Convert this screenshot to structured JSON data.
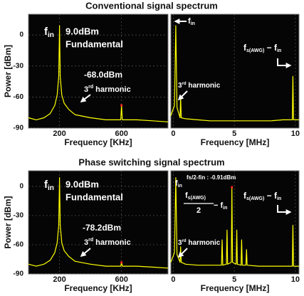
{
  "chart_data": [
    {
      "type": "line",
      "title": "Conventional signal spectrum",
      "x_label": "Frequency [KHz]",
      "y_label": "Power [dBm]",
      "xlim": [
        0,
        900
      ],
      "xticks": [
        200,
        600
      ],
      "ylim": [
        -90,
        20
      ],
      "yticks": [
        0,
        -30,
        -60,
        -90
      ],
      "grid": true,
      "color": "#ffff00",
      "x": [
        0,
        50,
        100,
        140,
        170,
        185,
        195,
        200,
        205,
        215,
        230,
        260,
        300,
        400,
        500,
        595,
        600,
        605,
        700,
        800,
        900
      ],
      "values": [
        -80,
        -82,
        -80,
        -76,
        -68,
        -58,
        -40,
        9,
        -40,
        -58,
        -66,
        -72,
        -77,
        -80,
        -82,
        -82,
        -68,
        -82,
        -82,
        -83,
        -84
      ],
      "annotations": {
        "fin": {
          "text": "f",
          "sub": "in"
        },
        "fundamental_power": "9.0dBm",
        "fundamental": "Fundamental",
        "harmonic_power": "-68.0dBm",
        "harmonic": {
          "text": "3",
          "sup": "rd",
          "tail": " harmonic"
        }
      }
    },
    {
      "type": "line",
      "x_label": "Frequency [MHz]",
      "xlim": [
        -0.2,
        10.3
      ],
      "xticks": [
        0,
        5,
        10
      ],
      "ylim": [
        -90,
        20
      ],
      "grid": true,
      "color": "#ffff00",
      "x": [
        -0.2,
        0.1,
        0.2,
        0.3,
        0.55,
        0.6,
        0.65,
        1,
        2,
        3,
        4,
        5,
        6,
        7,
        8,
        9,
        9.75,
        9.8,
        9.85,
        10.3
      ],
      "values": [
        -78,
        -68,
        9,
        -70,
        -80,
        -60,
        -80,
        -81,
        -82,
        -83,
        -83,
        -83,
        -83,
        -83,
        -83,
        -82,
        -82,
        -40,
        -82,
        -82
      ],
      "annotations": {
        "fin": {
          "text": "f",
          "sub": "in"
        },
        "image": {
          "text": "f",
          "sub": "s(AWG)",
          "mid": " − f",
          "sub2": "in"
        },
        "harmonic": {
          "text": "3",
          "sup": "rd",
          "tail": " harmonic"
        }
      }
    },
    {
      "type": "line",
      "title": "Phase switching signal spectrum",
      "x_label": "Frequency [KHz]",
      "y_label": "Power [dBm]",
      "xlim": [
        0,
        900
      ],
      "xticks": [
        200,
        600
      ],
      "ylim": [
        -90,
        16
      ],
      "yticks": [
        0,
        -30,
        -60,
        -90
      ],
      "grid": true,
      "color": "#ffff00",
      "x": [
        0,
        50,
        100,
        140,
        170,
        185,
        195,
        200,
        205,
        215,
        230,
        260,
        300,
        400,
        500,
        595,
        600,
        605,
        700,
        800,
        900
      ],
      "values": [
        -80,
        -82,
        -80,
        -76,
        -68,
        -58,
        -40,
        9,
        -40,
        -58,
        -66,
        -72,
        -77,
        -80,
        -82,
        -82,
        -78.2,
        -82,
        -82,
        -83,
        -84
      ],
      "annotations": {
        "fin": {
          "text": "f",
          "sub": "in"
        },
        "fundamental_power": "9.0dBm",
        "fundamental": "Fundamental",
        "harmonic_power": "-78.2dBm",
        "harmonic": {
          "text": "3",
          "sup": "rd",
          "tail": " harmonic"
        }
      }
    },
    {
      "type": "line",
      "x_label": "Frequency [MHz]",
      "xlim": [
        -0.2,
        10.3
      ],
      "xticks": [
        0,
        5,
        10
      ],
      "ylim": [
        -90,
        16
      ],
      "grid": true,
      "color": "#ffff00",
      "x": [
        -0.2,
        0.1,
        0.2,
        0.3,
        0.55,
        0.6,
        0.65,
        1,
        2,
        3,
        3.95,
        4.0,
        4.05,
        4.35,
        4.4,
        4.45,
        4.75,
        4.8,
        4.85,
        5.15,
        5.2,
        5.25,
        5.55,
        5.6,
        5.65,
        5.95,
        6.0,
        6.05,
        7,
        8,
        9,
        9.75,
        9.8,
        9.85,
        10.3
      ],
      "values": [
        -78,
        -68,
        9,
        -70,
        -78,
        -62,
        -78,
        -80,
        -81,
        -81,
        -81,
        -55,
        -81,
        -80,
        -45,
        -80,
        -78,
        -0.91,
        -78,
        -80,
        -45,
        -80,
        -81,
        -55,
        -81,
        -81,
        -65,
        -81,
        -82,
        -82,
        -82,
        -82,
        -40,
        -82,
        -82
      ],
      "annotations": {
        "fin": {
          "text": "f",
          "sub": "in"
        },
        "marker": "fs/2-fin : -0.91dBm",
        "half": {
          "num": "f",
          "num_sub": "s(AWG)",
          "den": "2",
          "tail": " − f",
          "tail_sub": "in"
        },
        "image": {
          "text": "f",
          "sub": "s(AWG)",
          "mid": " − f",
          "sub2": "in"
        },
        "harmonic": {
          "text": "3",
          "sup": "rd",
          "tail": " harmonic"
        }
      }
    }
  ]
}
